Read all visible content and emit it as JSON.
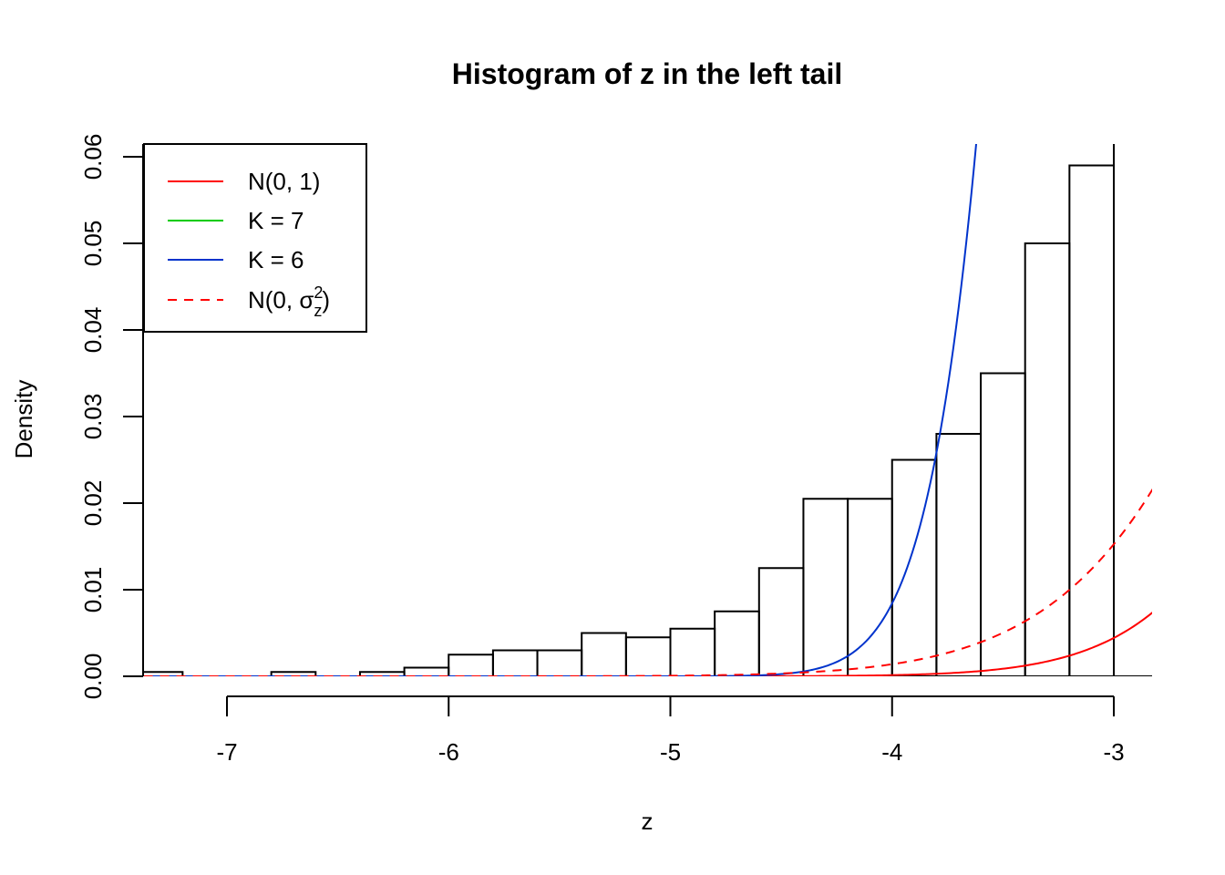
{
  "chart_data": {
    "type": "bar",
    "title": "Histogram of z in the left tail",
    "xlabel": "z",
    "ylabel": "Density",
    "xlim": [
      -7.45,
      -2.82
    ],
    "ylim": [
      0,
      0.0615
    ],
    "x_ticks": [
      -7,
      -6,
      -5,
      -4,
      -3
    ],
    "x_tick_labels": [
      "-7",
      "-6",
      "-5",
      "-4",
      "-3"
    ],
    "y_ticks": [
      0,
      0.01,
      0.02,
      0.03,
      0.04,
      0.05,
      0.06
    ],
    "y_tick_labels": [
      "0.00",
      "0.01",
      "0.02",
      "0.03",
      "0.04",
      "0.05",
      "0.06"
    ],
    "grid": false,
    "legend_position": "top-left",
    "bin_width": 0.2,
    "histogram": {
      "bin_starts": [
        -7.4,
        -7.2,
        -7.0,
        -6.8,
        -6.6,
        -6.4,
        -6.2,
        -6.0,
        -5.8,
        -5.6,
        -5.4,
        -5.2,
        -5.0,
        -4.8,
        -4.6,
        -4.4,
        -4.2,
        -4.0,
        -3.8,
        -3.6,
        -3.4,
        -3.2,
        -3.0
      ],
      "densities": [
        0.0005,
        0.0,
        0.0,
        0.0005,
        0.0,
        0.0005,
        0.001,
        0.0025,
        0.003,
        0.003,
        0.005,
        0.0045,
        0.0055,
        0.0075,
        0.0125,
        0.0205,
        0.0205,
        0.025,
        0.028,
        0.035,
        0.05,
        0.059,
        0.0625
      ]
    },
    "series": [
      {
        "name": "N(0, 1)",
        "color": "#ff0000",
        "dash": "solid",
        "distribution": "normal",
        "sd": 1
      },
      {
        "name": "K = 7",
        "color": "#00cc00",
        "dash": "solid",
        "distribution": "none"
      },
      {
        "name": "K = 6",
        "color": "#0033cc",
        "dash": "solid",
        "distribution": "normal-shifted",
        "mean": -2.5,
        "sd": 0.5,
        "scale": 0.95
      },
      {
        "name": "N(0, σz²)",
        "color": "#ff0000",
        "dash": "dashed",
        "distribution": "normal",
        "sd": 1.21
      }
    ],
    "legend": {
      "entries": [
        {
          "label": "N(0, 1)",
          "color": "#ff0000",
          "dash": "solid"
        },
        {
          "label": "K = 7",
          "color": "#00cc00",
          "dash": "solid"
        },
        {
          "label": "K = 6",
          "color": "#0033cc",
          "dash": "solid"
        },
        {
          "label_main": "N",
          "label_inner": "0, σ",
          "label_sup": "2",
          "label_sub": "z",
          "color": "#ff0000",
          "dash": "dashed"
        }
      ]
    }
  }
}
